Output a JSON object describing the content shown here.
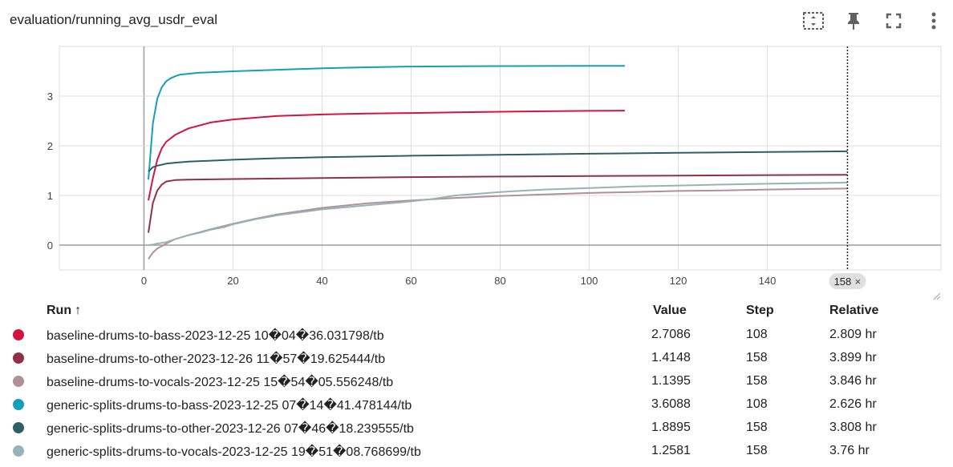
{
  "header": {
    "title": "evaluation/running_avg_usdr_eval",
    "icons": [
      "fit-domain-icon",
      "pin-icon",
      "fullscreen-icon",
      "more-vert-icon"
    ]
  },
  "colors": {
    "baseline_bass": "#d5133f",
    "baseline_other": "#8f3048",
    "baseline_vocals": "#b09099",
    "generic_bass": "#10a0b8",
    "generic_other": "#2f5f66",
    "generic_vocals": "#96b2ba"
  },
  "chart_data": {
    "type": "line",
    "title": "evaluation/running_avg_usdr_eval",
    "xlabel": "",
    "ylabel": "",
    "xlim": [
      -19,
      179
    ],
    "ylim": [
      -0.5,
      4
    ],
    "xticks": [
      0,
      20,
      40,
      60,
      80,
      100,
      120,
      140
    ],
    "yticks": [
      0,
      1,
      2,
      3
    ],
    "grid": true,
    "hover_step": 158,
    "hover_label": "158",
    "series": [
      {
        "name": "baseline-drums-to-bass-2023-12-25 10�04�36.031798/tb",
        "color": "#d5133f",
        "x": [
          1,
          2,
          3,
          4,
          5,
          7,
          10,
          15,
          20,
          30,
          40,
          50,
          60,
          70,
          80,
          90,
          100,
          108
        ],
        "y": [
          0.9,
          1.35,
          1.72,
          1.95,
          2.08,
          2.22,
          2.35,
          2.47,
          2.53,
          2.6,
          2.63,
          2.65,
          2.66,
          2.675,
          2.685,
          2.695,
          2.703,
          2.7086
        ]
      },
      {
        "name": "baseline-drums-to-other-2023-12-26 11�57�19.625444/tb",
        "color": "#8f3048",
        "x": [
          1,
          2,
          3,
          4,
          5,
          7,
          10,
          20,
          40,
          60,
          80,
          100,
          120,
          140,
          158
        ],
        "y": [
          0.25,
          0.85,
          1.1,
          1.22,
          1.28,
          1.31,
          1.32,
          1.33,
          1.35,
          1.37,
          1.38,
          1.39,
          1.4,
          1.41,
          1.4148
        ]
      },
      {
        "name": "baseline-drums-to-vocals-2023-12-25 15�54�05.556248/tb",
        "color": "#b09099",
        "x": [
          1,
          2,
          3,
          4,
          5,
          7,
          10,
          15,
          20,
          25,
          30,
          40,
          50,
          60,
          70,
          80,
          90,
          100,
          110,
          120,
          130,
          140,
          150,
          158
        ],
        "y": [
          -0.28,
          -0.15,
          -0.07,
          -0.02,
          0.03,
          0.12,
          0.2,
          0.32,
          0.43,
          0.53,
          0.62,
          0.75,
          0.84,
          0.9,
          0.95,
          0.99,
          1.02,
          1.05,
          1.07,
          1.09,
          1.1,
          1.12,
          1.13,
          1.1395
        ]
      },
      {
        "name": "generic-splits-drums-to-bass-2023-12-25 07�14�41.478144/tb",
        "color": "#10a0b8",
        "x": [
          1,
          2,
          3,
          4,
          5,
          6,
          7,
          8,
          10,
          12,
          15,
          20,
          30,
          40,
          50,
          60,
          70,
          80,
          90,
          100,
          108
        ],
        "y": [
          1.32,
          2.45,
          2.95,
          3.18,
          3.3,
          3.36,
          3.4,
          3.43,
          3.45,
          3.47,
          3.48,
          3.5,
          3.53,
          3.56,
          3.58,
          3.595,
          3.6,
          3.605,
          3.607,
          3.608,
          3.6088
        ]
      },
      {
        "name": "generic-splits-drums-to-other-2023-12-26 07�46�18.239555/tb",
        "color": "#2f5f66",
        "x": [
          1,
          2,
          3,
          4,
          5,
          7,
          10,
          15,
          20,
          30,
          40,
          60,
          80,
          100,
          120,
          140,
          158
        ],
        "y": [
          1.48,
          1.57,
          1.6,
          1.62,
          1.64,
          1.66,
          1.68,
          1.7,
          1.72,
          1.75,
          1.77,
          1.8,
          1.82,
          1.84,
          1.86,
          1.875,
          1.8895
        ]
      },
      {
        "name": "generic-splits-drums-to-vocals-2023-12-25 19�51�08.768699/tb",
        "color": "#96b2ba",
        "x": [
          1,
          2,
          3,
          5,
          7,
          10,
          13,
          15,
          18,
          20,
          25,
          30,
          40,
          50,
          60,
          65,
          70,
          80,
          90,
          100,
          110,
          120,
          130,
          140,
          150,
          158
        ],
        "y": [
          0.0,
          0.01,
          0.03,
          0.06,
          0.12,
          0.2,
          0.26,
          0.31,
          0.36,
          0.42,
          0.52,
          0.6,
          0.72,
          0.8,
          0.88,
          0.93,
          1.0,
          1.07,
          1.12,
          1.15,
          1.18,
          1.2,
          1.22,
          1.235,
          1.25,
          1.2581
        ]
      }
    ]
  },
  "table": {
    "headers": {
      "run": "Run",
      "sort_arrow": "↑",
      "value": "Value",
      "step": "Step",
      "relative": "Relative"
    },
    "rows": [
      {
        "run": "baseline-drums-to-bass-2023-12-25 10�04�36.031798/tb",
        "value": "2.7086",
        "step": "108",
        "relative": "2.809 hr",
        "color": "#d5133f"
      },
      {
        "run": "baseline-drums-to-other-2023-12-26 11�57�19.625444/tb",
        "value": "1.4148",
        "step": "158",
        "relative": "3.899 hr",
        "color": "#8f3048"
      },
      {
        "run": "baseline-drums-to-vocals-2023-12-25 15�54�05.556248/tb",
        "value": "1.1395",
        "step": "158",
        "relative": "3.846 hr",
        "color": "#b09099"
      },
      {
        "run": "generic-splits-drums-to-bass-2023-12-25 07�14�41.478144/tb",
        "value": "3.6088",
        "step": "108",
        "relative": "2.626 hr",
        "color": "#10a0b8"
      },
      {
        "run": "generic-splits-drums-to-other-2023-12-26 07�46�18.239555/tb",
        "value": "1.8895",
        "step": "158",
        "relative": "3.808 hr",
        "color": "#2f5f66"
      },
      {
        "run": "generic-splits-drums-to-vocals-2023-12-25 19�51�08.768699/tb",
        "value": "1.2581",
        "step": "158",
        "relative": "3.76 hr",
        "color": "#96b2ba"
      }
    ]
  }
}
